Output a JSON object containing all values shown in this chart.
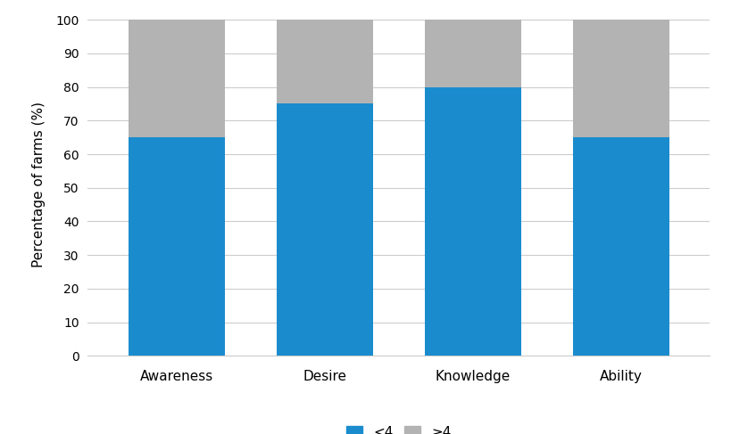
{
  "categories": [
    "Awareness",
    "Desire",
    "Knowledge",
    "Ability"
  ],
  "values_blue": [
    65,
    75,
    80,
    65
  ],
  "values_gray": [
    35,
    25,
    20,
    35
  ],
  "blue_color": "#1a8cce",
  "gray_color": "#b3b3b3",
  "ylabel": "Percentage of farms (%)",
  "ylim": [
    0,
    102
  ],
  "yticks": [
    0,
    10,
    20,
    30,
    40,
    50,
    60,
    70,
    80,
    90,
    100
  ],
  "legend_labels": [
    "<4",
    "≥4"
  ],
  "background_color": "#ffffff",
  "bar_width": 0.65,
  "grid_color": "#cccccc",
  "figsize": [
    8.2,
    4.87
  ],
  "dpi": 100
}
